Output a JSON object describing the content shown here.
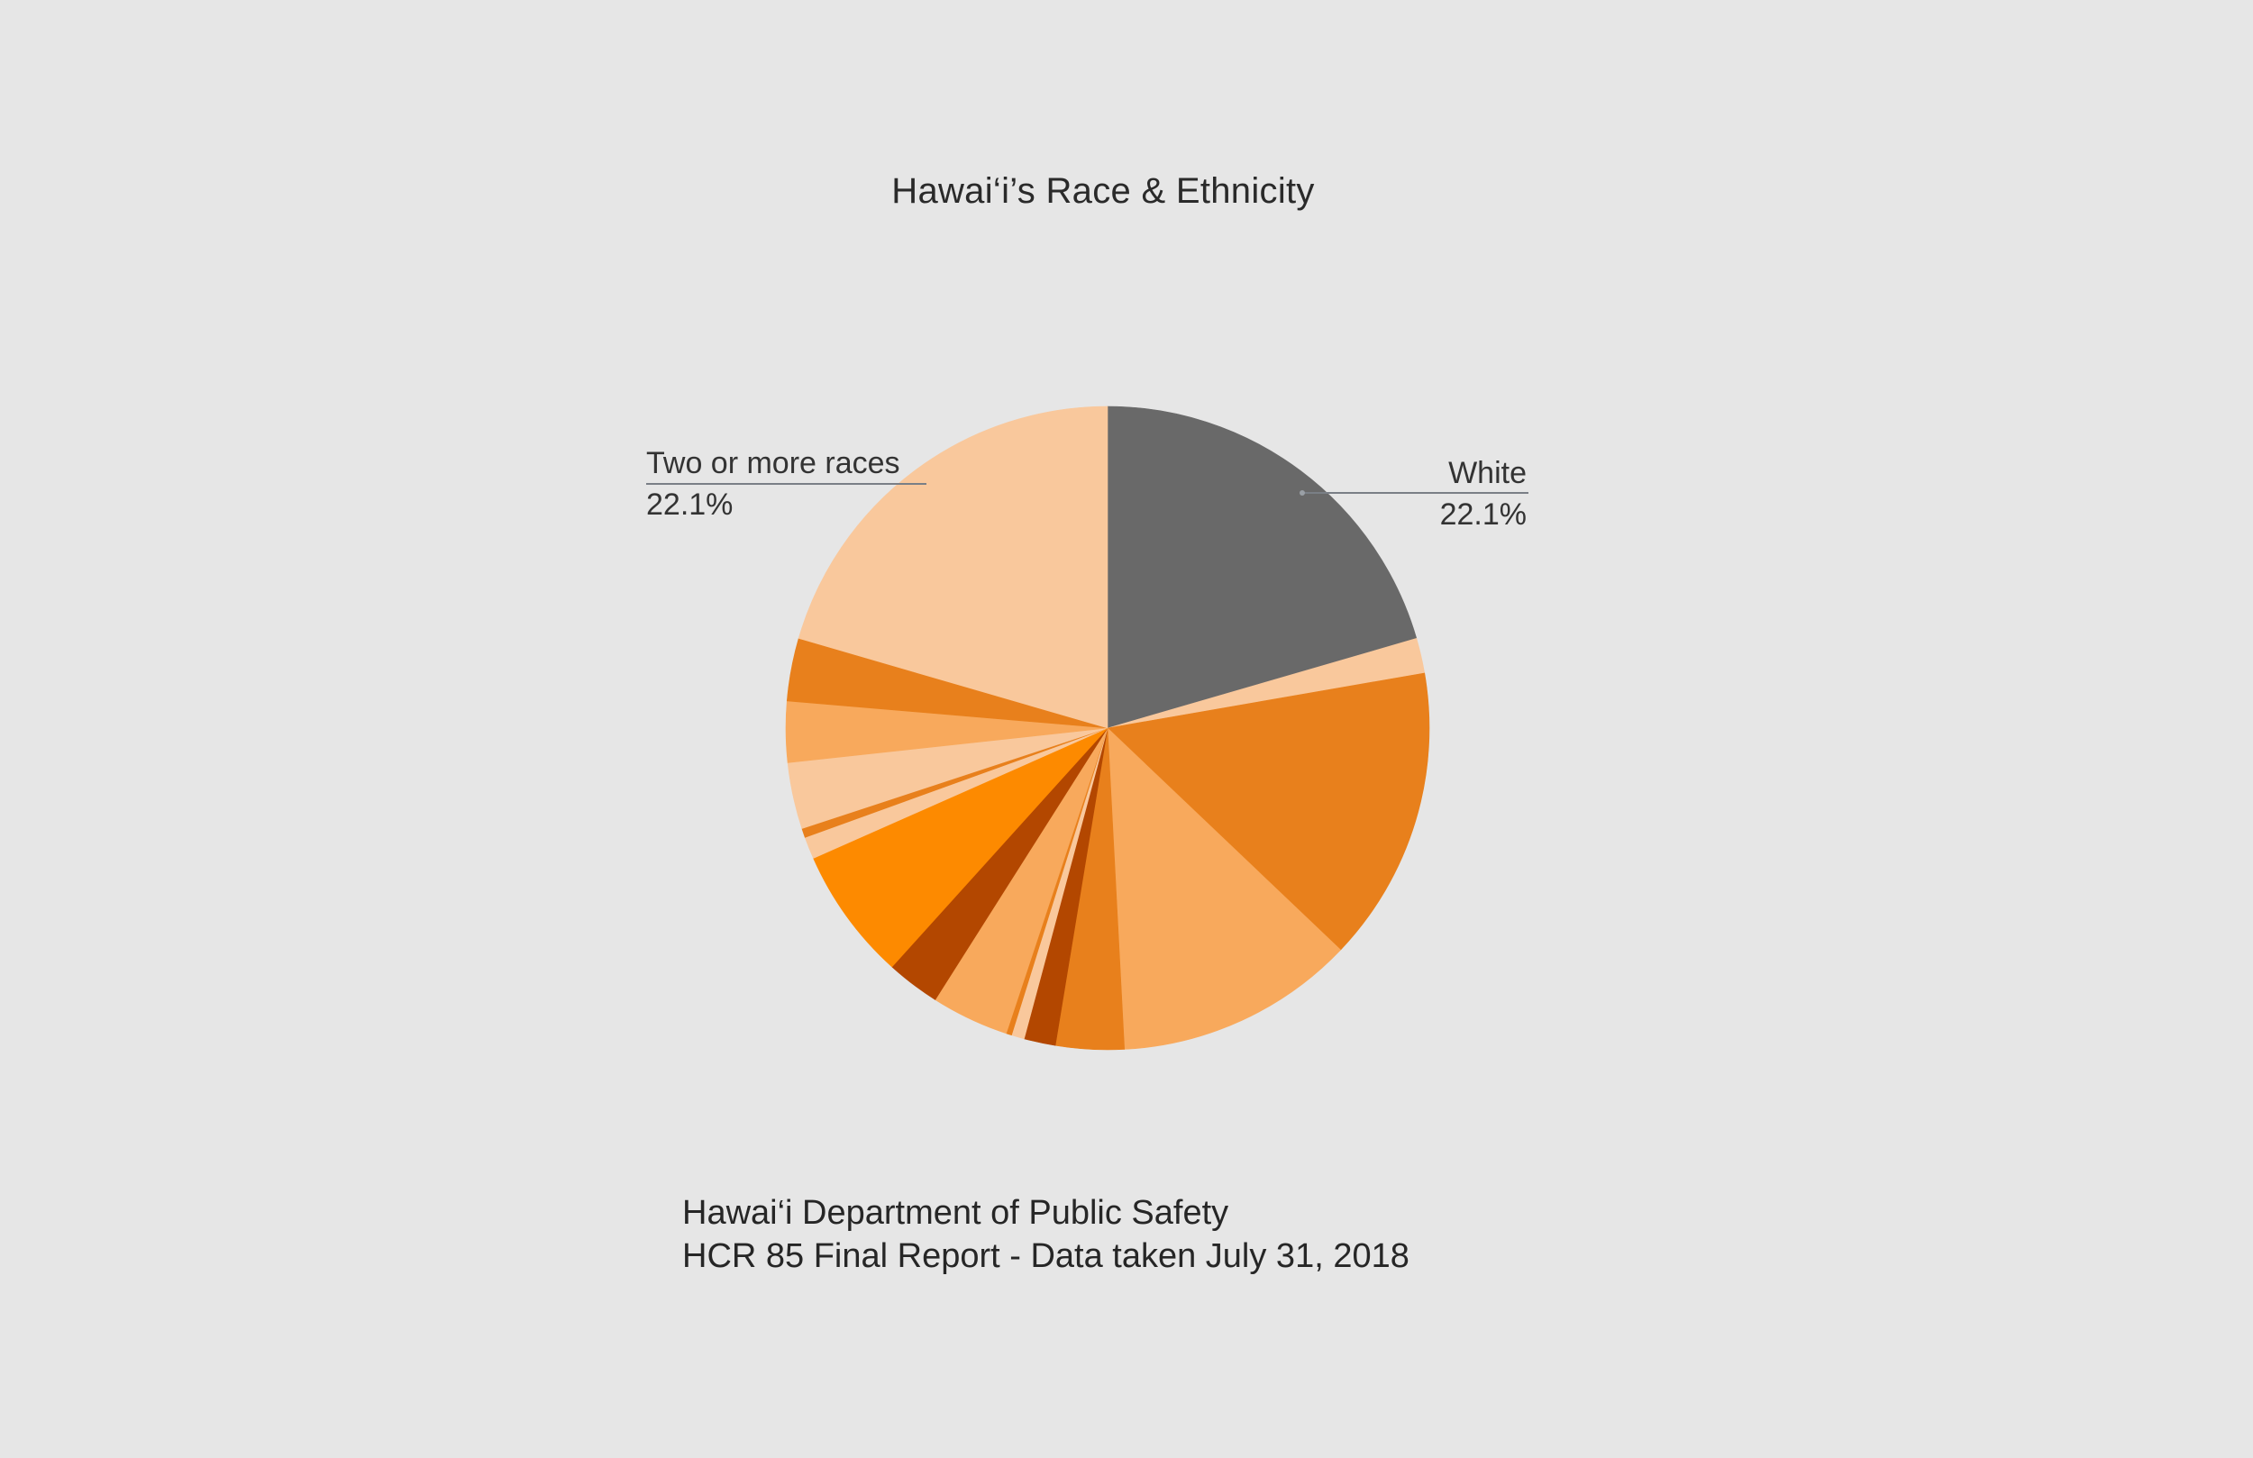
{
  "chart_data": {
    "type": "pie",
    "title": "Hawai‘i’s Race & Ethnicity",
    "slices": [
      {
        "name": "White",
        "value": 22.1,
        "color": "#696969"
      },
      {
        "name": "",
        "value": 1.9,
        "color": "#f9c89c"
      },
      {
        "name": "",
        "value": 16.0,
        "color": "#e8801c"
      },
      {
        "name": "",
        "value": 13.0,
        "color": "#f8a95c"
      },
      {
        "name": "",
        "value": 3.7,
        "color": "#e8801c"
      },
      {
        "name": "",
        "value": 1.7,
        "color": "#b34700"
      },
      {
        "name": "",
        "value": 0.7,
        "color": "#f9c89c"
      },
      {
        "name": "",
        "value": 0.3,
        "color": "#e8801c"
      },
      {
        "name": "",
        "value": 4.2,
        "color": "#f8a95c"
      },
      {
        "name": "",
        "value": 2.9,
        "color": "#b34700"
      },
      {
        "name": "",
        "value": 7.2,
        "color": "#fd8a00"
      },
      {
        "name": "",
        "value": 1.2,
        "color": "#f9c89c"
      },
      {
        "name": "",
        "value": 0.5,
        "color": "#e8801c"
      },
      {
        "name": "",
        "value": 3.6,
        "color": "#f9c89c"
      },
      {
        "name": "",
        "value": 3.3,
        "color": "#f8a95c"
      },
      {
        "name": "",
        "value": 3.4,
        "color": "#e8801c"
      },
      {
        "name": "Two or more races",
        "value": 22.1,
        "color": "#f9c89c"
      }
    ],
    "labels": [
      {
        "name": "Two or more races",
        "value_text": "22.1%"
      },
      {
        "name": "White",
        "value_text": "22.1%"
      }
    ],
    "legend": "none",
    "grid": false
  },
  "source": {
    "line1": "Hawai‘i Department of Public Safety",
    "line2": "HCR 85 Final Report - Data taken July 31, 2018"
  }
}
